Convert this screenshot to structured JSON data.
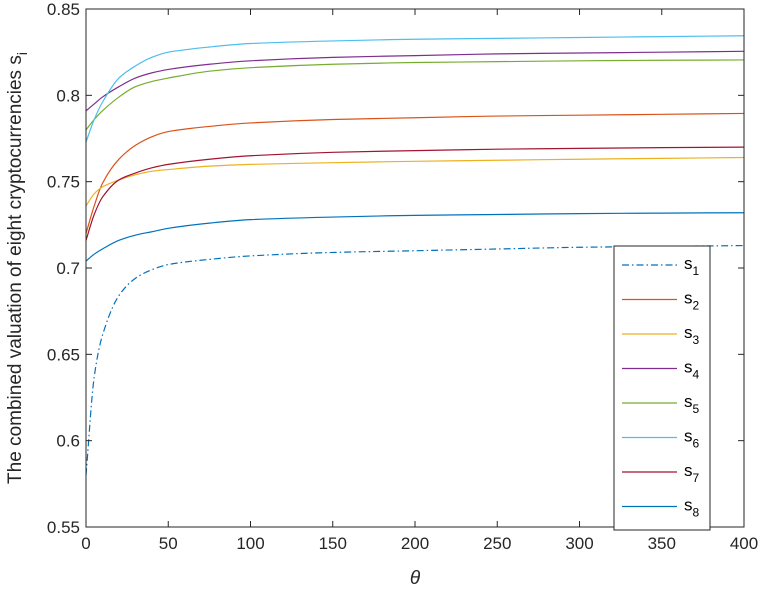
{
  "chart_data": {
    "type": "line",
    "xlabel": "θ",
    "ylabel": "The combined valuation of eight cryptocurrencies s",
    "ylabel_subscript": "i",
    "xlim": [
      0,
      400
    ],
    "ylim": [
      0.55,
      0.85
    ],
    "xticks": [
      0,
      50,
      100,
      150,
      200,
      250,
      300,
      350,
      400
    ],
    "xtick_labels": [
      "0",
      "50",
      "100",
      "150",
      "200",
      "250",
      "300",
      "350",
      "400"
    ],
    "yticks": [
      0.55,
      0.6,
      0.65,
      0.7,
      0.75,
      0.8,
      0.85
    ],
    "ytick_labels": [
      "0.55",
      "0.6",
      "0.65",
      "0.7",
      "0.75",
      "0.8",
      "0.85"
    ],
    "grid": false,
    "legend_position": "bottom-right",
    "x": [
      0,
      5,
      10,
      20,
      30,
      40,
      50,
      75,
      100,
      150,
      200,
      250,
      300,
      350,
      400
    ],
    "series": [
      {
        "name": "s",
        "sub": "1",
        "color": "#0072BD",
        "dash": "dashdot",
        "values": [
          0.58,
          0.637,
          0.661,
          0.684,
          0.694,
          0.699,
          0.702,
          0.705,
          0.707,
          0.709,
          0.71,
          0.711,
          0.712,
          0.7125,
          0.713
        ]
      },
      {
        "name": "s",
        "sub": "2",
        "color": "#D95319",
        "dash": "solid",
        "values": [
          0.72,
          0.736,
          0.749,
          0.763,
          0.771,
          0.776,
          0.779,
          0.782,
          0.784,
          0.786,
          0.787,
          0.788,
          0.7885,
          0.789,
          0.7895
        ]
      },
      {
        "name": "s",
        "sub": "3",
        "color": "#EDB120",
        "dash": "solid",
        "values": [
          0.736,
          0.743,
          0.747,
          0.751,
          0.754,
          0.756,
          0.757,
          0.759,
          0.76,
          0.761,
          0.7618,
          0.7624,
          0.763,
          0.7635,
          0.764
        ]
      },
      {
        "name": "s",
        "sub": "4",
        "color": "#7E2F8E",
        "dash": "solid",
        "values": [
          0.791,
          0.795,
          0.799,
          0.805,
          0.81,
          0.813,
          0.815,
          0.818,
          0.82,
          0.822,
          0.823,
          0.824,
          0.8245,
          0.825,
          0.8255
        ]
      },
      {
        "name": "s",
        "sub": "5",
        "color": "#77AC30",
        "dash": "solid",
        "values": [
          0.78,
          0.786,
          0.791,
          0.799,
          0.805,
          0.808,
          0.81,
          0.814,
          0.816,
          0.818,
          0.819,
          0.8195,
          0.82,
          0.8203,
          0.8205
        ]
      },
      {
        "name": "s",
        "sub": "6",
        "color": "#4DBEEE",
        "dash": "solid",
        "values": [
          0.773,
          0.786,
          0.796,
          0.81,
          0.817,
          0.822,
          0.825,
          0.828,
          0.83,
          0.8315,
          0.8325,
          0.833,
          0.8335,
          0.834,
          0.8345
        ]
      },
      {
        "name": "s",
        "sub": "7",
        "color": "#A2142F",
        "dash": "solid",
        "values": [
          0.716,
          0.731,
          0.741,
          0.751,
          0.755,
          0.758,
          0.76,
          0.763,
          0.765,
          0.767,
          0.768,
          0.7688,
          0.7693,
          0.7697,
          0.77
        ]
      },
      {
        "name": "s",
        "sub": "8",
        "color": "#0072BD",
        "dash": "solid",
        "values": [
          0.704,
          0.708,
          0.711,
          0.716,
          0.719,
          0.721,
          0.723,
          0.726,
          0.728,
          0.7295,
          0.7305,
          0.731,
          0.7315,
          0.7318,
          0.732
        ]
      }
    ]
  }
}
